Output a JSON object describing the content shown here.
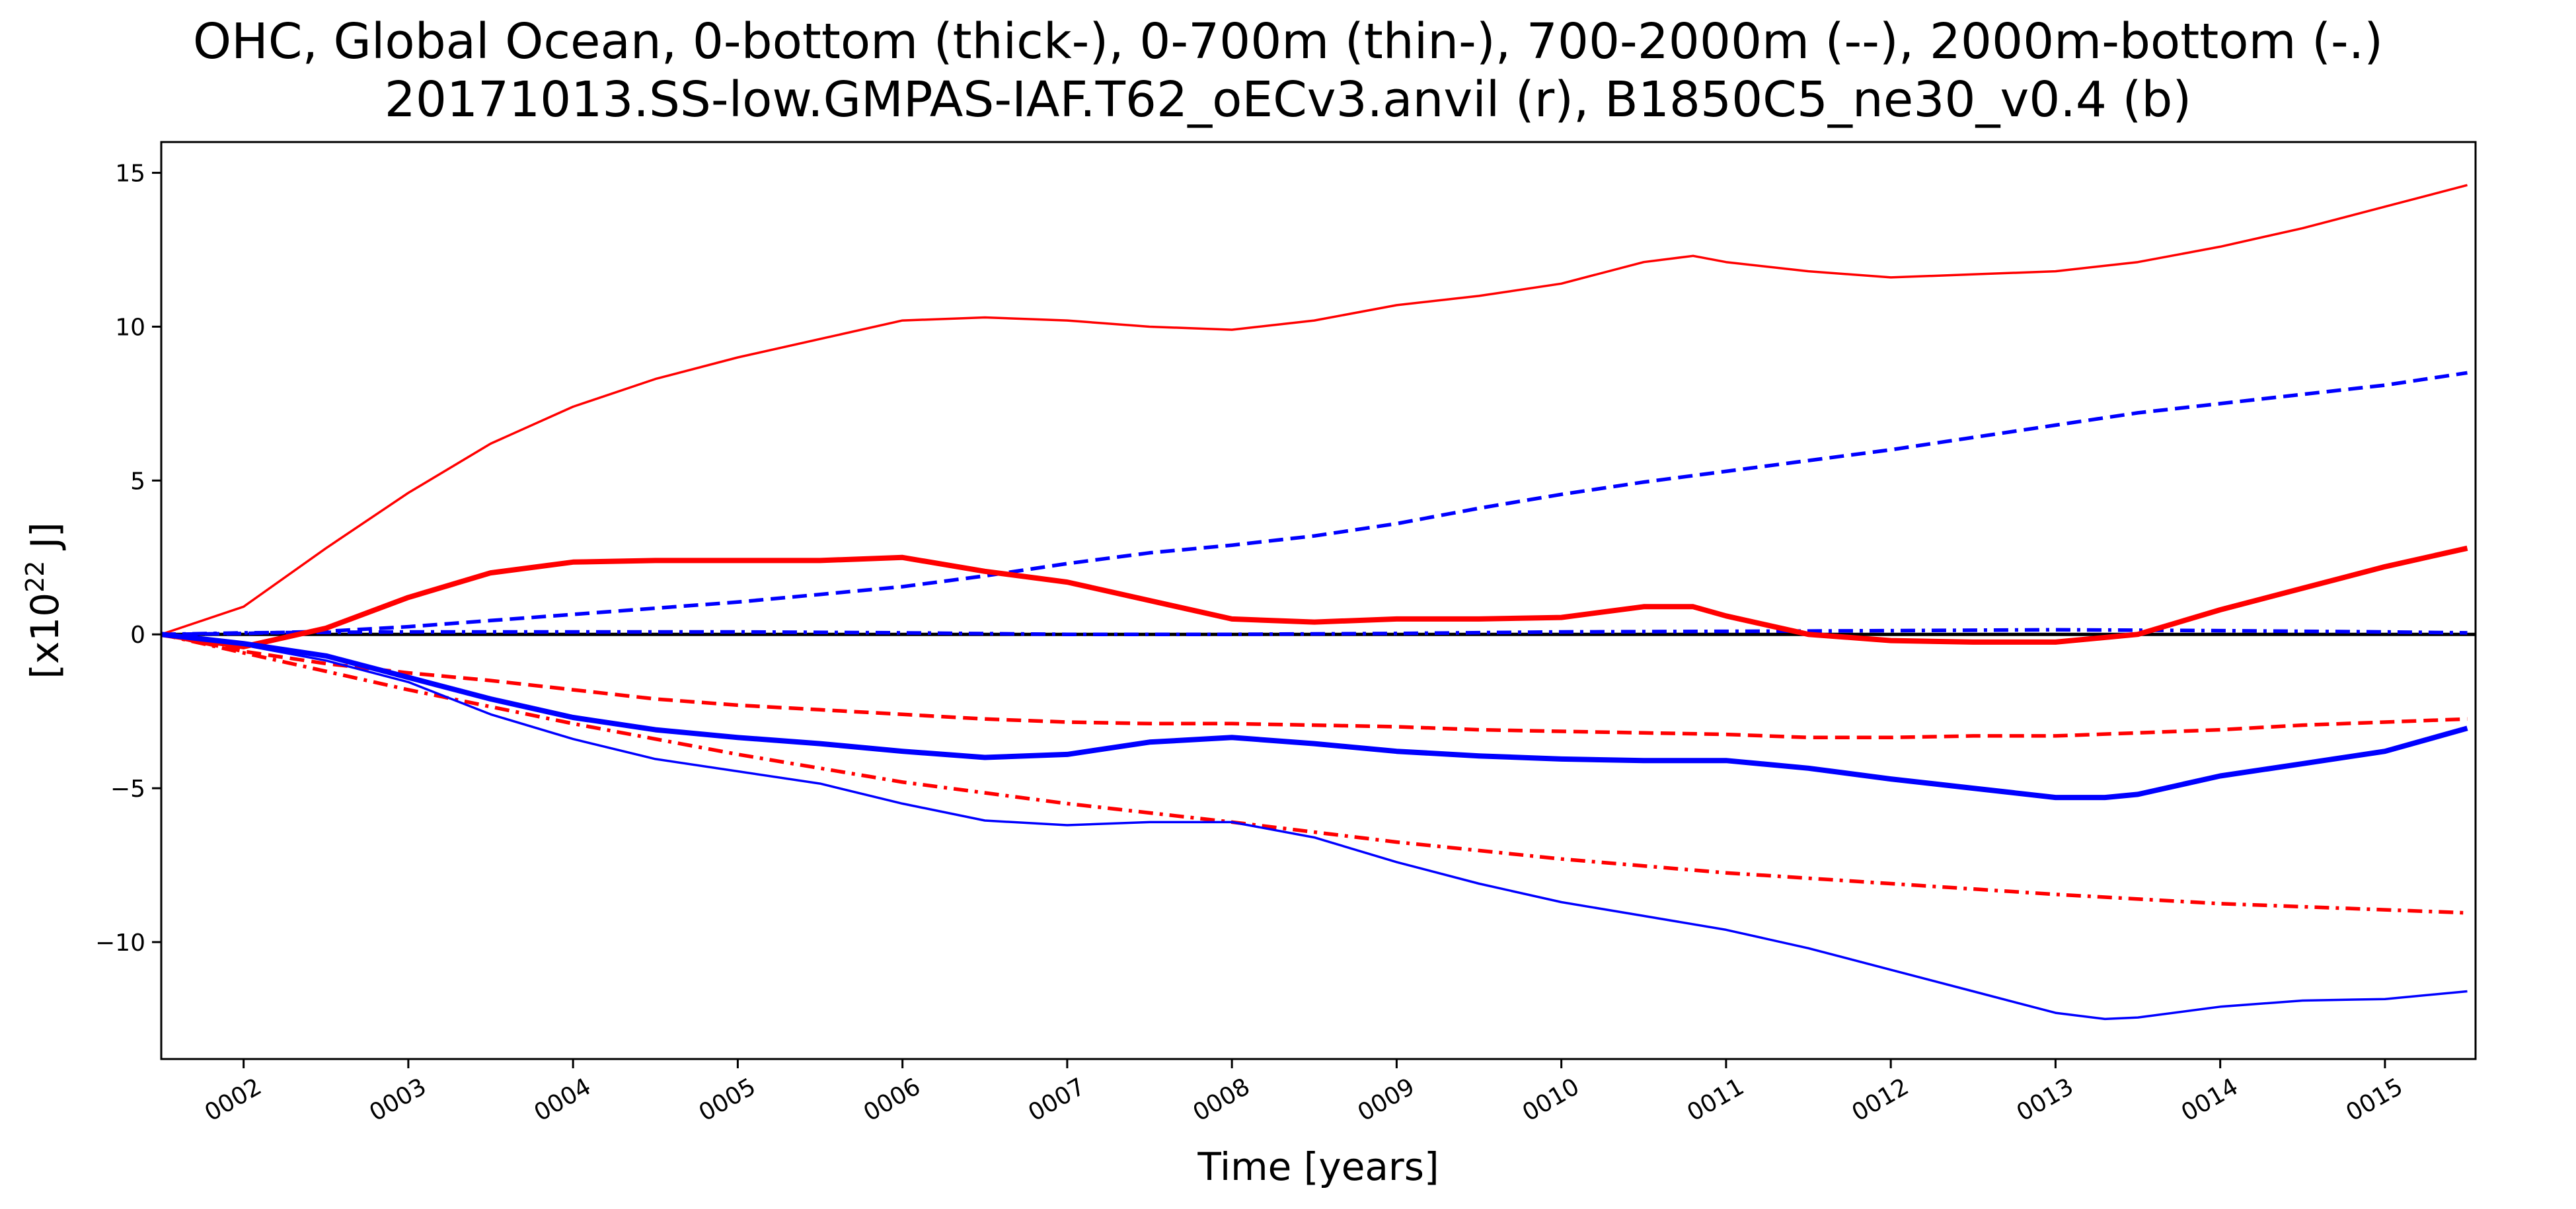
{
  "chart_data": {
    "type": "line",
    "title": "OHC, Global Ocean, 0-bottom (thick-), 0-700m (thin-), 700-2000m (--), 2000m-bottom (-.)",
    "subtitle": "20171013.SS-low.GMPAS-IAF.T62_oECv3.anvil (r), B1850C5_ne30_v0.4 (b)",
    "xlabel": "Time [years]",
    "ylabel": {
      "prefix": "[x10",
      "exponent": "22",
      "suffix": " J]"
    },
    "xlim": [
      1.5,
      15.55
    ],
    "ylim": [
      -13.8,
      16.0
    ],
    "xticks": [
      2,
      3,
      4,
      5,
      6,
      7,
      8,
      9,
      10,
      11,
      12,
      13,
      14,
      15
    ],
    "xtick_labels": [
      "0002",
      "0003",
      "0004",
      "0005",
      "0006",
      "0007",
      "0008",
      "0009",
      "0010",
      "0011",
      "0012",
      "0013",
      "0014",
      "0015"
    ],
    "yticks": [
      -10,
      -5,
      0,
      5,
      10,
      15
    ],
    "ytick_labels": [
      "−10",
      "−5",
      "0",
      "5",
      "10",
      "15"
    ],
    "legend": "none",
    "grid": false,
    "zero_line": {
      "y": 0,
      "color": "#000000"
    },
    "colors": {
      "red": "#ff0000",
      "blue": "#0000ff",
      "axis": "#000000"
    },
    "series": [
      {
        "color": "#ff0000",
        "style": "thin-solid",
        "x": [
          1.5,
          2.0,
          2.5,
          3.0,
          3.5,
          4.0,
          4.5,
          5.0,
          5.5,
          6.0,
          6.5,
          7.0,
          7.5,
          8.0,
          8.5,
          9.0,
          9.5,
          10.0,
          10.5,
          10.8,
          11.0,
          11.5,
          12.0,
          12.5,
          13.0,
          13.5,
          14.0,
          14.5,
          15.0,
          15.5
        ],
        "y": [
          0.0,
          0.9,
          2.8,
          4.6,
          6.2,
          7.4,
          8.3,
          9.0,
          9.6,
          10.2,
          10.3,
          10.2,
          10.0,
          9.9,
          10.2,
          10.7,
          11.0,
          11.4,
          12.1,
          12.3,
          12.1,
          11.8,
          11.6,
          11.7,
          11.8,
          12.1,
          12.6,
          13.2,
          13.9,
          14.6
        ]
      },
      {
        "color": "#ff0000",
        "style": "thick-solid",
        "x": [
          1.5,
          2.0,
          2.5,
          3.0,
          3.5,
          4.0,
          4.5,
          5.0,
          5.5,
          6.0,
          6.5,
          7.0,
          7.5,
          8.0,
          8.5,
          9.0,
          9.5,
          10.0,
          10.5,
          10.8,
          11.0,
          11.5,
          12.0,
          12.5,
          13.0,
          13.5,
          14.0,
          14.5,
          15.0,
          15.5
        ],
        "y": [
          0.0,
          -0.4,
          0.2,
          1.2,
          2.0,
          2.35,
          2.4,
          2.4,
          2.4,
          2.5,
          2.05,
          1.7,
          1.1,
          0.5,
          0.4,
          0.5,
          0.5,
          0.55,
          0.9,
          0.9,
          0.6,
          0.0,
          -0.2,
          -0.25,
          -0.25,
          0.0,
          0.8,
          1.5,
          2.2,
          2.8
        ]
      },
      {
        "color": "#ff0000",
        "style": "dashed",
        "x": [
          1.5,
          2.0,
          2.5,
          3.0,
          3.5,
          4.0,
          4.5,
          5.0,
          5.5,
          6.0,
          6.5,
          7.0,
          7.5,
          8.0,
          8.5,
          9.0,
          9.5,
          10.0,
          10.5,
          11.0,
          11.5,
          12.0,
          12.5,
          13.0,
          13.5,
          14.0,
          14.5,
          15.0,
          15.5
        ],
        "y": [
          0.0,
          -0.55,
          -0.95,
          -1.25,
          -1.5,
          -1.8,
          -2.1,
          -2.3,
          -2.45,
          -2.6,
          -2.75,
          -2.85,
          -2.9,
          -2.9,
          -2.95,
          -3.0,
          -3.1,
          -3.15,
          -3.2,
          -3.25,
          -3.35,
          -3.35,
          -3.3,
          -3.3,
          -3.2,
          -3.1,
          -2.95,
          -2.85,
          -2.75
        ]
      },
      {
        "color": "#ff0000",
        "style": "dashdot",
        "x": [
          1.5,
          2.0,
          3.0,
          4.0,
          5.0,
          6.0,
          7.0,
          8.0,
          9.0,
          10.0,
          11.0,
          12.0,
          13.0,
          14.0,
          15.0,
          15.5
        ],
        "y": [
          0.0,
          -0.6,
          -1.8,
          -2.9,
          -3.9,
          -4.8,
          -5.5,
          -6.1,
          -6.75,
          -7.3,
          -7.75,
          -8.1,
          -8.45,
          -8.75,
          -8.95,
          -9.05
        ]
      },
      {
        "color": "#0000ff",
        "style": "thin-solid",
        "x": [
          1.5,
          2.0,
          2.5,
          3.0,
          3.5,
          4.0,
          4.5,
          5.0,
          5.5,
          6.0,
          6.5,
          7.0,
          7.5,
          8.0,
          8.5,
          9.0,
          9.5,
          10.0,
          10.5,
          11.0,
          11.5,
          12.0,
          12.5,
          13.0,
          13.3,
          13.5,
          14.0,
          14.5,
          15.0,
          15.5
        ],
        "y": [
          0.0,
          -0.35,
          -0.85,
          -1.55,
          -2.6,
          -3.4,
          -4.05,
          -4.45,
          -4.85,
          -5.5,
          -6.05,
          -6.2,
          -6.1,
          -6.1,
          -6.6,
          -7.4,
          -8.1,
          -8.7,
          -9.15,
          -9.6,
          -10.2,
          -10.9,
          -11.6,
          -12.3,
          -12.5,
          -12.45,
          -12.1,
          -11.9,
          -11.85,
          -11.6
        ]
      },
      {
        "color": "#0000ff",
        "style": "thick-solid",
        "x": [
          1.5,
          2.0,
          2.5,
          3.0,
          3.5,
          4.0,
          4.5,
          5.0,
          5.5,
          6.0,
          6.5,
          7.0,
          7.5,
          8.0,
          8.5,
          9.0,
          9.5,
          10.0,
          10.5,
          11.0,
          11.5,
          12.0,
          12.5,
          13.0,
          13.3,
          13.5,
          14.0,
          14.5,
          15.0,
          15.5
        ],
        "y": [
          0.0,
          -0.3,
          -0.7,
          -1.4,
          -2.1,
          -2.7,
          -3.1,
          -3.35,
          -3.55,
          -3.8,
          -4.0,
          -3.9,
          -3.5,
          -3.35,
          -3.55,
          -3.8,
          -3.95,
          -4.05,
          -4.1,
          -4.1,
          -4.35,
          -4.7,
          -5.0,
          -5.3,
          -5.3,
          -5.2,
          -4.6,
          -4.2,
          -3.8,
          -3.05
        ]
      },
      {
        "color": "#0000ff",
        "style": "dashed",
        "x": [
          1.5,
          2.0,
          2.5,
          3.0,
          3.5,
          4.0,
          4.5,
          5.0,
          5.5,
          6.0,
          6.5,
          7.0,
          7.5,
          8.0,
          8.5,
          9.0,
          9.5,
          10.0,
          10.5,
          11.0,
          11.5,
          12.0,
          12.5,
          13.0,
          13.5,
          14.0,
          14.5,
          15.0,
          15.5
        ],
        "y": [
          0.0,
          0.03,
          0.1,
          0.25,
          0.45,
          0.65,
          0.85,
          1.05,
          1.3,
          1.55,
          1.9,
          2.3,
          2.65,
          2.9,
          3.2,
          3.6,
          4.1,
          4.55,
          4.95,
          5.3,
          5.65,
          6.0,
          6.4,
          6.8,
          7.2,
          7.5,
          7.8,
          8.1,
          8.5
        ]
      },
      {
        "color": "#0000ff",
        "style": "dashdot",
        "x": [
          1.5,
          2.0,
          3.0,
          4.0,
          5.0,
          6.0,
          7.0,
          8.0,
          9.0,
          10.0,
          11.0,
          12.0,
          13.0,
          14.0,
          15.0,
          15.5
        ],
        "y": [
          0.0,
          0.05,
          0.08,
          0.08,
          0.08,
          0.05,
          0.0,
          0.0,
          0.03,
          0.08,
          0.1,
          0.12,
          0.15,
          0.12,
          0.08,
          0.05
        ]
      }
    ]
  }
}
